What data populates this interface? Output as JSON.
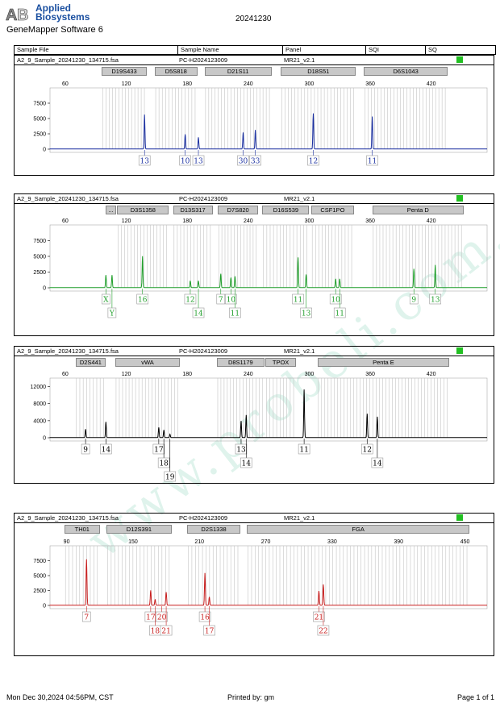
{
  "header": {
    "logo_line1": "Applied",
    "logo_line2": "Biosystems",
    "app_name": "GeneMapper Software 6",
    "title": "20241230"
  },
  "columns": [
    "Sample File",
    "Sample Name",
    "Panel",
    "SQI",
    "SQ"
  ],
  "colors": {
    "blue": "#1a2fa0",
    "green": "#1f9e2a",
    "black": "#000000",
    "red": "#c81e1e",
    "sq_green": "#22c022"
  },
  "panels": [
    {
      "sample_file": "A2_9_Sample_20241230_134715.fsa",
      "sample_name": "PC-H2024123009",
      "panel": "MR21_v2.1",
      "dye_color": "#1a2fa0",
      "markers": [
        {
          "label": "D19S433",
          "from": 96,
          "to": 140
        },
        {
          "label": "D5S818",
          "from": 148,
          "to": 190
        },
        {
          "label": "D21S11",
          "from": 197,
          "to": 263
        },
        {
          "label": "D18S51",
          "from": 272,
          "to": 346
        },
        {
          "label": "D6S1043",
          "from": 354,
          "to": 436
        }
      ],
      "x_ticks": [
        60,
        120,
        180,
        240,
        300,
        360,
        420
      ],
      "y_ticks": [
        0,
        2500,
        5000,
        7500
      ],
      "y_max": 10000,
      "peaks": [
        {
          "x": 138,
          "h": 5600
        },
        {
          "x": 178,
          "h": 2400
        },
        {
          "x": 191,
          "h": 1900
        },
        {
          "x": 235,
          "h": 2700
        },
        {
          "x": 247,
          "h": 3100
        },
        {
          "x": 304,
          "h": 5800
        },
        {
          "x": 362,
          "h": 5300
        }
      ],
      "alleles": [
        {
          "x": 138,
          "row": 0,
          "label": "13"
        },
        {
          "x": 178,
          "row": 0,
          "label": "10"
        },
        {
          "x": 191,
          "row": 0,
          "label": "13"
        },
        {
          "x": 235,
          "row": 0,
          "label": "30"
        },
        {
          "x": 247,
          "row": 0,
          "label": "33"
        },
        {
          "x": 304,
          "row": 0,
          "label": "12"
        },
        {
          "x": 362,
          "row": 0,
          "label": "11"
        }
      ]
    },
    {
      "sample_file": "A2_9_Sample_20241230_134715.fsa",
      "sample_name": "PC-H2024123009",
      "panel": "MR21_v2.1",
      "dye_color": "#1f9e2a",
      "markers": [
        {
          "label": "...",
          "from": 100,
          "to": 110
        },
        {
          "label": "D3S1358",
          "from": 111,
          "to": 162
        },
        {
          "label": "D13S317",
          "from": 166,
          "to": 205
        },
        {
          "label": "D7S820",
          "from": 210,
          "to": 250
        },
        {
          "label": "D16S539",
          "from": 254,
          "to": 300
        },
        {
          "label": "CSF1PO",
          "from": 302,
          "to": 344
        },
        {
          "label": "Penta D",
          "from": 362,
          "to": 452
        }
      ],
      "x_ticks": [
        60,
        120,
        180,
        240,
        300,
        360,
        420
      ],
      "y_ticks": [
        0,
        2500,
        5000,
        7500
      ],
      "y_max": 10000,
      "peaks": [
        {
          "x": 100,
          "h": 2000
        },
        {
          "x": 106,
          "h": 2000
        },
        {
          "x": 136,
          "h": 5000
        },
        {
          "x": 183,
          "h": 1100
        },
        {
          "x": 191,
          "h": 1100
        },
        {
          "x": 213,
          "h": 2200
        },
        {
          "x": 223,
          "h": 1600
        },
        {
          "x": 227,
          "h": 1800
        },
        {
          "x": 289,
          "h": 4800
        },
        {
          "x": 297,
          "h": 2100
        },
        {
          "x": 326,
          "h": 1400
        },
        {
          "x": 330,
          "h": 1400
        },
        {
          "x": 403,
          "h": 3000
        },
        {
          "x": 424,
          "h": 3600
        }
      ],
      "alleles": [
        {
          "x": 100,
          "row": 0,
          "label": "X"
        },
        {
          "x": 106,
          "row": 1,
          "label": "Y"
        },
        {
          "x": 136,
          "row": 0,
          "label": "16"
        },
        {
          "x": 183,
          "row": 0,
          "label": "12"
        },
        {
          "x": 191,
          "row": 1,
          "label": "14"
        },
        {
          "x": 213,
          "row": 0,
          "label": "7"
        },
        {
          "x": 223,
          "row": 0,
          "label": "10"
        },
        {
          "x": 227,
          "row": 1,
          "label": "11"
        },
        {
          "x": 289,
          "row": 0,
          "label": "11"
        },
        {
          "x": 297,
          "row": 1,
          "label": "13"
        },
        {
          "x": 326,
          "row": 0,
          "label": "10"
        },
        {
          "x": 330,
          "row": 1,
          "label": "11"
        },
        {
          "x": 403,
          "row": 0,
          "label": "9"
        },
        {
          "x": 424,
          "row": 0,
          "label": "13"
        }
      ]
    },
    {
      "sample_file": "A2_9_Sample_20241230_134715.fsa",
      "sample_name": "PC-H2024123009",
      "panel": "MR21_v2.1",
      "dye_color": "#000000",
      "markers": [
        {
          "label": "D2S441",
          "from": 70,
          "to": 100
        },
        {
          "label": "vWA",
          "from": 109,
          "to": 173
        },
        {
          "label": "D8S1179",
          "from": 209,
          "to": 256
        },
        {
          "label": "TPOX",
          "from": 257,
          "to": 287
        },
        {
          "label": "Penta E",
          "from": 308,
          "to": 438
        }
      ],
      "x_ticks": [
        60,
        120,
        180,
        240,
        300,
        360,
        420
      ],
      "y_ticks": [
        0,
        4000,
        8000,
        12000
      ],
      "y_max": 14000,
      "peaks": [
        {
          "x": 80,
          "h": 2000
        },
        {
          "x": 100,
          "h": 3700
        },
        {
          "x": 152,
          "h": 2400
        },
        {
          "x": 157,
          "h": 1800
        },
        {
          "x": 163,
          "h": 800
        },
        {
          "x": 233,
          "h": 3900
        },
        {
          "x": 238,
          "h": 5300
        },
        {
          "x": 295,
          "h": 11300
        },
        {
          "x": 357,
          "h": 5600
        },
        {
          "x": 367,
          "h": 4900
        }
      ],
      "alleles": [
        {
          "x": 80,
          "row": 0,
          "label": "9"
        },
        {
          "x": 100,
          "row": 0,
          "label": "14"
        },
        {
          "x": 152,
          "row": 0,
          "label": "17"
        },
        {
          "x": 157,
          "row": 1,
          "label": "18"
        },
        {
          "x": 163,
          "row": 2,
          "label": "19"
        },
        {
          "x": 233,
          "row": 0,
          "label": "13"
        },
        {
          "x": 238,
          "row": 1,
          "label": "14"
        },
        {
          "x": 295,
          "row": 0,
          "label": "11"
        },
        {
          "x": 357,
          "row": 0,
          "label": "12"
        },
        {
          "x": 367,
          "row": 1,
          "label": "14"
        }
      ]
    },
    {
      "sample_file": "A2_9_Sample_20241230_134715.fsa",
      "sample_name": "PC-H2024123009",
      "panel": "MR21_v2.1",
      "dye_color": "#c81e1e",
      "markers": [
        {
          "label": "TH01",
          "from": 88,
          "to": 120
        },
        {
          "label": "D12S391",
          "from": 126,
          "to": 185
        },
        {
          "label": "D2S1338",
          "from": 199,
          "to": 247
        },
        {
          "label": "FGA",
          "from": 253,
          "to": 454
        }
      ],
      "x_ticks": [
        90,
        150,
        210,
        270,
        330,
        390,
        450
      ],
      "y_ticks": [
        0,
        2500,
        5000,
        7500
      ],
      "y_max": 10000,
      "peaks": [
        {
          "x": 108,
          "h": 7700
        },
        {
          "x": 166,
          "h": 2500
        },
        {
          "x": 170,
          "h": 1000
        },
        {
          "x": 180,
          "h": 2200
        },
        {
          "x": 215,
          "h": 5400
        },
        {
          "x": 219,
          "h": 1400
        },
        {
          "x": 318,
          "h": 2400
        },
        {
          "x": 322,
          "h": 3500
        }
      ],
      "alleles": [
        {
          "x": 166,
          "row": 0,
          "label": "17"
        },
        {
          "x": 170,
          "row": 1,
          "label": "18"
        },
        {
          "x": 176,
          "row": 0,
          "label": "20"
        },
        {
          "x": 180,
          "row": 1,
          "label": "21"
        },
        {
          "x": 108,
          "row": 0,
          "label": "7"
        },
        {
          "x": 215,
          "row": 0,
          "label": "16"
        },
        {
          "x": 219,
          "row": 1,
          "label": "17"
        },
        {
          "x": 318,
          "row": 0,
          "label": "21"
        },
        {
          "x": 322,
          "row": 1,
          "label": "22"
        }
      ]
    }
  ],
  "footer": {
    "date": "Mon Dec 30,2024 04:56PM, CST",
    "printed_by": "Printed by: gm",
    "page": "Page 1 of 1"
  },
  "watermark": "www.probeli.com.cn"
}
